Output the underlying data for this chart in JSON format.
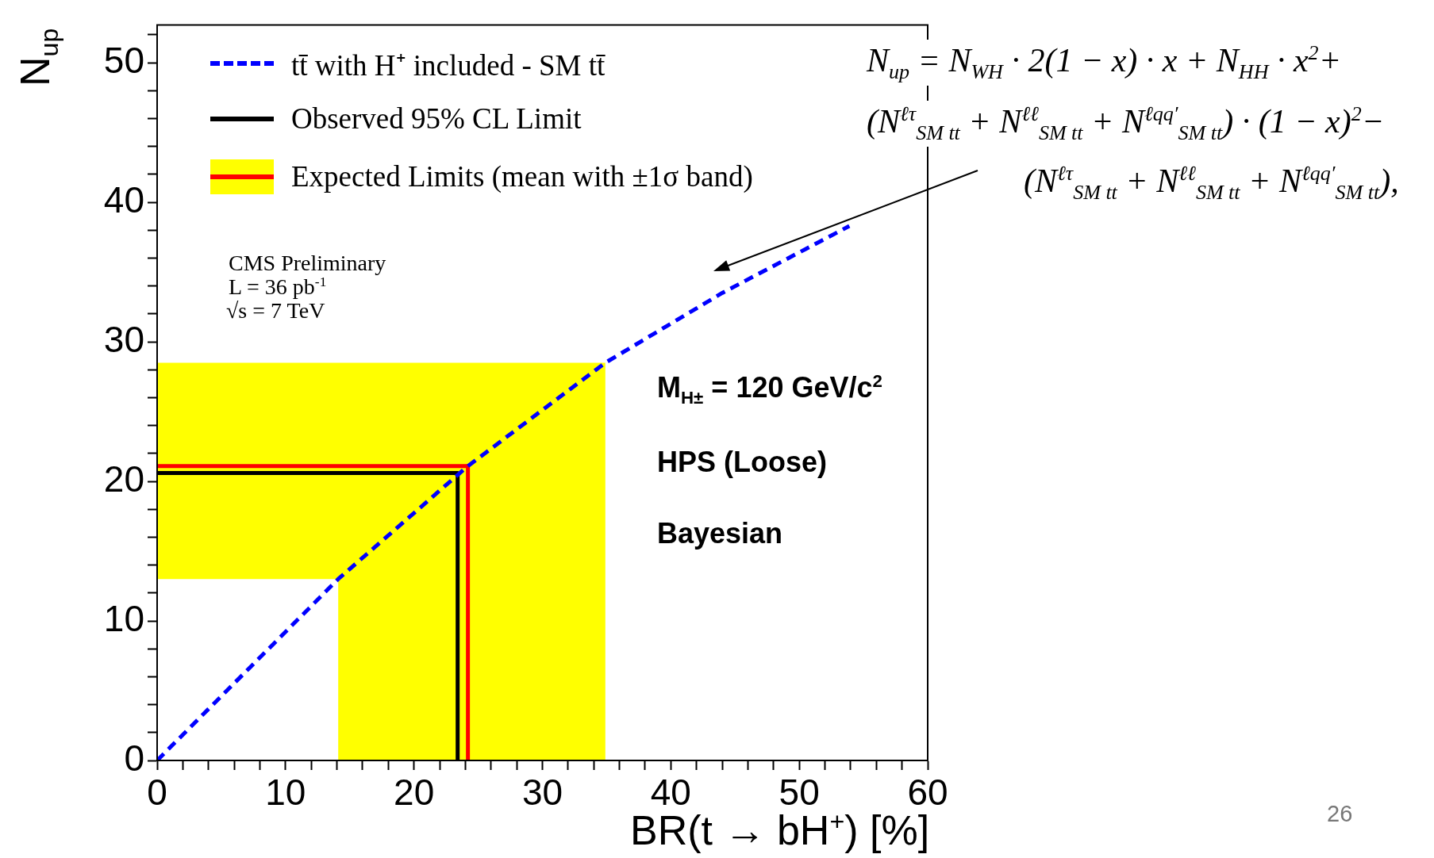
{
  "chart_data": {
    "type": "line",
    "xlabel": "BR(t → bH$^{+}$) [%]",
    "ylabel": "N$_{up}$",
    "xlim": [
      0,
      60
    ],
    "ylim": [
      0,
      52.7
    ],
    "xticks": [
      0,
      {
        "value": 2,
        "label": null
      },
      {
        "value": 4,
        "label": null
      },
      {
        "value": 6,
        "label": null
      },
      {
        "value": 8,
        "label": null
      },
      10,
      {
        "value": 12,
        "label": null
      },
      {
        "value": 14,
        "label": null
      },
      {
        "value": 16,
        "label": null
      },
      {
        "value": 18,
        "label": null
      },
      20,
      {
        "value": 22,
        "label": null
      },
      {
        "value": 24,
        "label": null
      },
      {
        "value": 26,
        "label": null
      },
      {
        "value": 28,
        "label": null
      },
      30,
      {
        "value": 32,
        "label": null
      },
      {
        "value": 34,
        "label": null
      },
      {
        "value": 36,
        "label": null
      },
      {
        "value": 38,
        "label": null
      },
      40,
      {
        "value": 42,
        "label": null
      },
      {
        "value": 44,
        "label": null
      },
      {
        "value": 46,
        "label": null
      },
      {
        "value": 48,
        "label": null
      },
      50,
      {
        "value": 52,
        "label": null
      },
      {
        "value": 54,
        "label": null
      },
      {
        "value": 56,
        "label": null
      },
      {
        "value": 58,
        "label": null
      },
      60
    ],
    "yticks": [
      0,
      {
        "value": 2,
        "label": null
      },
      {
        "value": 4,
        "label": null
      },
      {
        "value": 6,
        "label": null
      },
      {
        "value": 8,
        "label": null
      },
      10,
      {
        "value": 12,
        "label": null
      },
      {
        "value": 14,
        "label": null
      },
      {
        "value": 16,
        "label": null
      },
      {
        "value": 18,
        "label": null
      },
      20,
      {
        "value": 22,
        "label": null
      },
      {
        "value": 24,
        "label": null
      },
      {
        "value": 26,
        "label": null
      },
      {
        "value": 28,
        "label": null
      },
      30,
      {
        "value": 32,
        "label": null
      },
      {
        "value": 34,
        "label": null
      },
      {
        "value": 36,
        "label": null
      },
      {
        "value": 38,
        "label": null
      },
      40,
      {
        "value": 42,
        "label": null
      },
      {
        "value": 44,
        "label": null
      },
      {
        "value": 46,
        "label": null
      },
      {
        "value": 48,
        "label": null
      },
      50,
      {
        "value": 52,
        "label": null
      }
    ],
    "grid": false,
    "legend": "top left",
    "marker": "none",
    "series": [
      {
        "name": "tt̄ with H⁺ included - SM tt̄",
        "color": "#0000ff",
        "line_style": "dashed",
        "x": [
          0,
          14.1,
          24.2,
          34.9,
          44,
          53.9
        ],
        "values": [
          0,
          13,
          21.1,
          28.5,
          33.5,
          38.3
        ]
      },
      {
        "name": "Observed 95% CL Limit",
        "color": "#000000",
        "line_style": "solid",
        "x": [
          0,
          23.4,
          23.4
        ],
        "values": [
          20.6,
          20.6,
          0
        ]
      },
      {
        "name": "Expected Limits (mean with ±1σ band)",
        "color": "#ff0000",
        "line_style": "solid",
        "x": [
          0,
          24.2,
          24.2
        ],
        "values": [
          21.1,
          21.1,
          0
        ]
      },
      {
        "type": "area",
        "color": "#ffff00",
        "x": [
          0,
          14.1,
          14.1,
          34.9,
          34.9,
          0
        ],
        "values": [
          13,
          13,
          0,
          0,
          28.5,
          28.5
        ]
      }
    ],
    "annotations": [
      "CMS Preliminary",
      "L = 36 pb$^{-1}$",
      "√s = 7 TeV",
      "M$_{H±}$ = 120 GeV/c$^{2}$",
      "HPS (Loose)",
      "Bayesian",
      "N$_{up}$ = N$_{WH}$ · 2(1 − x) · x + N$_{HH}$ · x$^{2}$+",
      "(N$^{ℓτ}$$_{SM tt}$ + N$^{ℓℓ}$$_{SM tt}$ + N$^{ℓqq′}$$_{SM tt}$) · (1 − x)$^{2}$−",
      "(N$^{ℓτ}$$_{SM tt}$ + N$^{ℓℓ}$$_{SM tt}$ + N$^{ℓqq′}$$_{SM tt}$),",
      "26"
    ]
  }
}
